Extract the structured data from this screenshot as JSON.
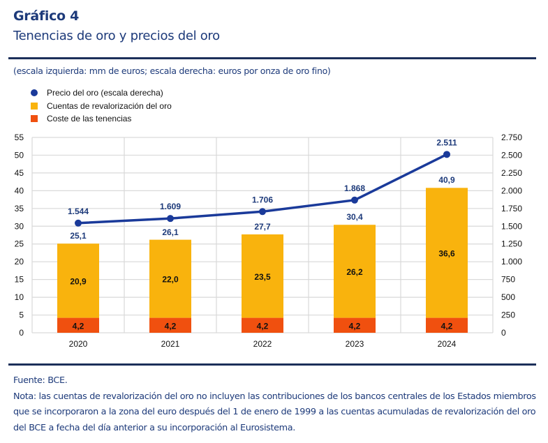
{
  "header": {
    "chart_number": "Gráfico 4",
    "title": "Tenencias de oro y precios del oro",
    "units_note": "(escala izquierda: mm de euros; escala derecha: euros por onza de oro fino)"
  },
  "legend": [
    {
      "label": "Precio del oro (escala derecha)",
      "shape": "dot",
      "color": "#1a3a9a"
    },
    {
      "label": "Cuentas de revalorización del oro",
      "shape": "square",
      "color": "#f9b30d"
    },
    {
      "label": "Coste de las tenencias",
      "shape": "square",
      "color": "#f0500f"
    }
  ],
  "footer": {
    "source": "Fuente: BCE.",
    "note": "Nota: las cuentas de revalorización del oro no incluyen las contribuciones de los bancos centrales de los Estados miembros que se incorporaron a la zona del euro después del 1 de enero de 1999 a las cuentas acumuladas de revalorización del oro del BCE a fecha del día anterior a su incorporación al Eurosistema."
  },
  "colors": {
    "title": "#1d3a7a",
    "rule": "#1c2f5a",
    "gold_revaluation": "#f9b30d",
    "holding_cost": "#f0500f",
    "price_line": "#1a3a9a",
    "grid": "#d9d9d9"
  },
  "chart_data": {
    "type": "bar",
    "stacked": true,
    "categories": [
      "2020",
      "2021",
      "2022",
      "2023",
      "2024"
    ],
    "series": [
      {
        "name": "Coste de las tenencias",
        "type": "bar",
        "axis": "left",
        "values": [
          4.2,
          4.2,
          4.2,
          4.2,
          4.2
        ],
        "labels": [
          "4,2",
          "4,2",
          "4,2",
          "4,2",
          "4,2"
        ]
      },
      {
        "name": "Cuentas de revalorización del oro",
        "type": "bar",
        "axis": "left",
        "values": [
          20.9,
          22.0,
          23.5,
          26.2,
          36.6
        ],
        "labels": [
          "20,9",
          "22,0",
          "23,5",
          "26,2",
          "36,6"
        ]
      },
      {
        "name": "Precio del oro (escala derecha)",
        "type": "line",
        "axis": "right",
        "values": [
          1544,
          1609,
          1706,
          1868,
          2511
        ],
        "labels": [
          "1.544",
          "1.609",
          "1.706",
          "1.868",
          "2.511"
        ]
      }
    ],
    "totals": {
      "values": [
        25.1,
        26.1,
        27.7,
        30.4,
        40.9
      ],
      "labels": [
        "25,1",
        "26,1",
        "27,7",
        "30,4",
        "40,9"
      ]
    },
    "left_axis": {
      "range": [
        0,
        55
      ],
      "ticks": [
        "0",
        "5",
        "10",
        "15",
        "20",
        "25",
        "30",
        "35",
        "40",
        "45",
        "50",
        "55"
      ],
      "label": "mm de euros"
    },
    "right_axis": {
      "range": [
        0,
        2750
      ],
      "ticks": [
        "0",
        "250",
        "500",
        "750",
        "1.000",
        "1.250",
        "1.500",
        "1.750",
        "2.000",
        "2.250",
        "2.500",
        "2.750"
      ],
      "label": "euros por onza de oro fino"
    },
    "grid": true,
    "legend_position": "top-left"
  }
}
